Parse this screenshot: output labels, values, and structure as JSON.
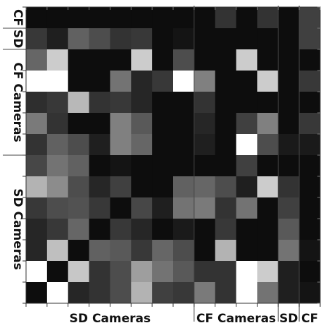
{
  "chart_data": {
    "type": "heatmap",
    "title": "",
    "colormap": "grayscale",
    "rows": 14,
    "cols": 14,
    "x_groups": [
      {
        "label": "SD Cameras",
        "cols": [
          0,
          7
        ]
      },
      {
        "label": "CF Cameras",
        "cols": [
          8,
          11
        ]
      },
      {
        "label": "SD",
        "cols": [
          12,
          12
        ]
      },
      {
        "label": "CF",
        "cols": [
          13,
          13
        ]
      }
    ],
    "y_groups": [
      {
        "label": "CF",
        "rows": [
          0,
          0
        ]
      },
      {
        "label": "SD",
        "rows": [
          1,
          1
        ]
      },
      {
        "label": "CF Cameras",
        "rows": [
          2,
          6
        ]
      },
      {
        "label": "SD Cameras",
        "rows": [
          7,
          13
        ]
      }
    ],
    "values": [
      [
        0.05,
        0.05,
        0.05,
        0.05,
        0.05,
        0.05,
        0.05,
        0.05,
        0.05,
        0.2,
        0.05,
        0.2,
        0.05,
        0.25
      ],
      [
        0.22,
        0.12,
        0.38,
        0.3,
        0.2,
        0.22,
        0.05,
        0.08,
        0.05,
        0.05,
        0.05,
        0.05,
        0.05,
        0.25
      ],
      [
        0.4,
        0.8,
        0.05,
        0.05,
        0.05,
        0.8,
        0.05,
        0.3,
        0.05,
        0.05,
        0.8,
        0.05,
        0.05,
        0.05
      ],
      [
        1.0,
        1.0,
        0.05,
        0.05,
        0.45,
        0.15,
        0.22,
        1.0,
        0.5,
        0.05,
        0.05,
        0.8,
        0.05,
        0.22
      ],
      [
        0.18,
        0.22,
        0.72,
        0.2,
        0.22,
        0.15,
        0.05,
        0.05,
        0.2,
        0.05,
        0.05,
        0.05,
        0.05,
        0.05
      ],
      [
        0.48,
        0.2,
        0.05,
        0.05,
        0.5,
        0.35,
        0.05,
        0.05,
        0.15,
        0.05,
        0.25,
        0.5,
        0.05,
        0.22
      ],
      [
        0.2,
        0.38,
        0.3,
        0.12,
        0.5,
        0.4,
        0.05,
        0.05,
        0.12,
        0.05,
        1.0,
        0.3,
        0.1,
        0.1
      ],
      [
        0.28,
        0.45,
        0.38,
        0.05,
        0.08,
        0.05,
        0.05,
        0.05,
        0.05,
        0.05,
        0.25,
        0.05,
        0.05,
        0.05
      ],
      [
        0.7,
        0.55,
        0.3,
        0.15,
        0.25,
        0.05,
        0.05,
        0.38,
        0.4,
        0.3,
        0.12,
        0.8,
        0.2,
        0.05
      ],
      [
        0.22,
        0.3,
        0.32,
        0.22,
        0.05,
        0.28,
        0.12,
        0.45,
        0.48,
        0.2,
        0.45,
        0.05,
        0.25,
        0.05
      ],
      [
        0.15,
        0.22,
        0.4,
        0.05,
        0.22,
        0.15,
        0.05,
        0.1,
        0.05,
        0.22,
        0.05,
        0.05,
        0.35,
        0.05
      ],
      [
        0.15,
        0.75,
        0.05,
        0.38,
        0.35,
        0.22,
        0.4,
        0.3,
        0.05,
        0.7,
        0.05,
        0.05,
        0.45,
        0.08
      ],
      [
        1.0,
        0.05,
        0.78,
        0.2,
        0.3,
        0.62,
        0.45,
        0.35,
        0.2,
        0.2,
        1.0,
        0.8,
        0.12,
        0.05
      ],
      [
        0.05,
        1.0,
        0.15,
        0.2,
        0.3,
        0.7,
        0.25,
        0.22,
        0.48,
        0.2,
        1.0,
        0.45,
        0.12,
        0.08
      ]
    ]
  }
}
